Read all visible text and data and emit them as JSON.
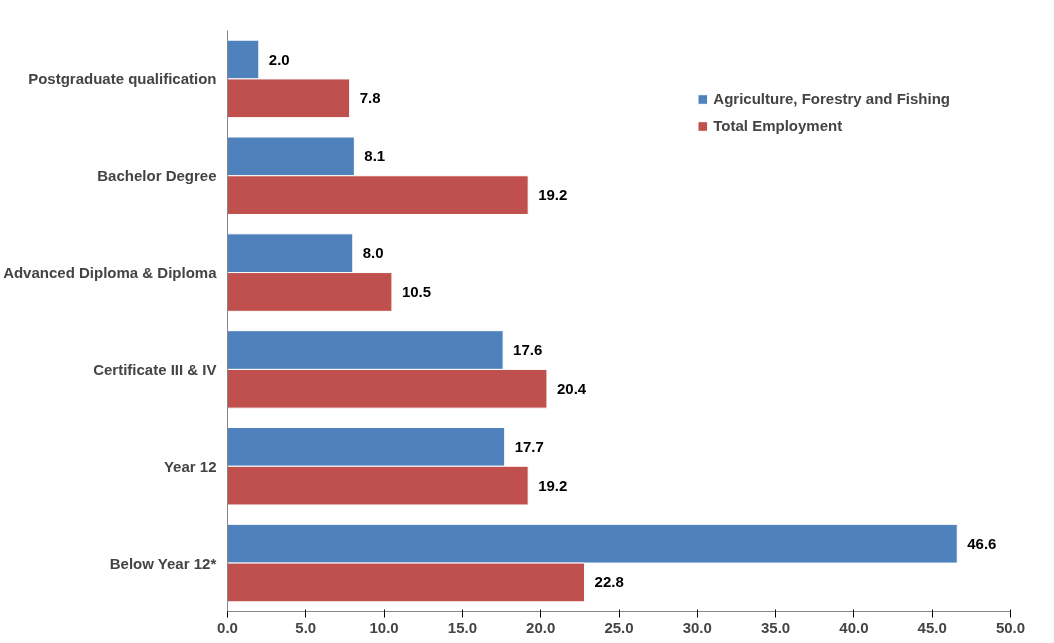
{
  "chart_data": {
    "type": "bar",
    "orientation": "horizontal",
    "categories": [
      "Postgraduate qualification",
      "Bachelor Degree",
      "Advanced Diploma & Diploma",
      "Certificate III & IV",
      "Year 12",
      "Below Year 12*"
    ],
    "series": [
      {
        "name": "Agriculture, Forestry and Fishing",
        "color": "#4f81bd",
        "values": [
          2.0,
          8.1,
          8.0,
          17.6,
          17.7,
          46.6
        ],
        "value_labels": [
          "2.0",
          "8.1",
          "8.0",
          "17.6",
          "17.7",
          "46.6"
        ]
      },
      {
        "name": "Total Employment",
        "color": "#c0504d",
        "values": [
          7.8,
          19.2,
          10.5,
          20.4,
          19.2,
          22.8
        ],
        "value_labels": [
          "7.8",
          "19.2",
          "10.5",
          "20.4",
          "19.2",
          "22.8"
        ]
      }
    ],
    "xlim": [
      0,
      50
    ],
    "xticks": [
      {
        "value": 0,
        "label": "0.0"
      },
      {
        "value": 5,
        "label": "5.0"
      },
      {
        "value": 10,
        "label": "10.0"
      },
      {
        "value": 15,
        "label": "15.0"
      },
      {
        "value": 20,
        "label": "20.0"
      },
      {
        "value": 25,
        "label": "25.0"
      },
      {
        "value": 30,
        "label": "30.0"
      },
      {
        "value": 35,
        "label": "35.0"
      },
      {
        "value": 40,
        "label": "40.0"
      },
      {
        "value": 45,
        "label": "45.0"
      },
      {
        "value": 50,
        "label": "50.0"
      }
    ],
    "legend": "top right",
    "grid": false
  }
}
